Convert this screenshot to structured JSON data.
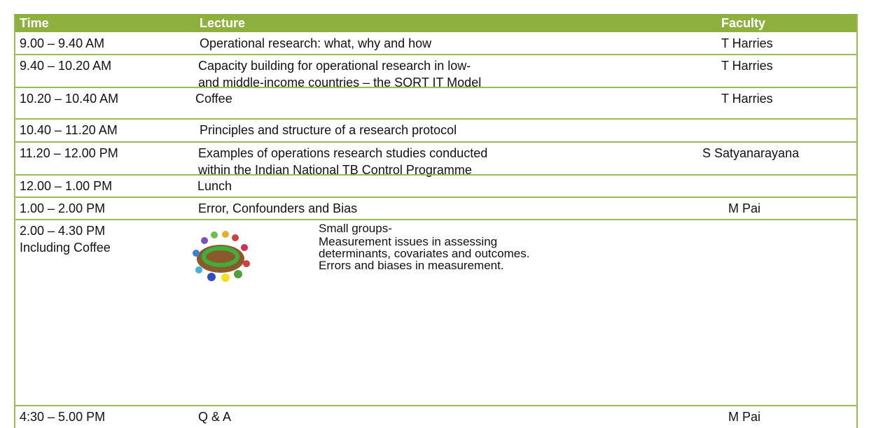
{
  "table": {
    "header": [
      "Time",
      "Lecture",
      "Faculty"
    ],
    "rows": [
      {
        "time": [
          "9.00 – 9.40 AM"
        ],
        "lecture": [
          "Operational research: what, why and how"
        ],
        "faculty": "T Harries"
      },
      {
        "time": [
          "9.40 – 10.20 AM"
        ],
        "lecture": [
          "Capacity building for operational research in low-",
          "and middle-income countries – the SORT IT Model"
        ],
        "faculty": "T Harries"
      },
      {
        "time": [
          "10.20 – 10.40 AM"
        ],
        "lecture": [
          "Coffee"
        ],
        "faculty": "T Harries"
      },
      {
        "time": [
          "10.40 – 11.20 AM"
        ],
        "lecture": [
          "Principles and structure of a research protocol"
        ]
      },
      {
        "time": [
          "11.20 – 12.00 PM"
        ],
        "lecture": [
          "Examples of operations research studies conducted",
          "within the Indian National TB Control Programme"
        ],
        "faculty": "S Satyanarayana"
      },
      {
        "time": [
          "12.00 – 1.00 PM"
        ],
        "lecture": [
          "Lunch"
        ]
      },
      {
        "time": [
          "1.00 – 2.00 PM"
        ],
        "lecture": [
          "Error, Confounders and Bias"
        ],
        "faculty": "M Pai"
      },
      {
        "time": [
          "2.00 – 4.30 PM",
          "Including Coffee"
        ],
        "lecture": [
          "Small groups-",
          "Measurement issues in assessing",
          "determinants, covariates and outcomes.",
          "Errors and biases in measurement."
        ]
      },
      {
        "time": [
          "4:30 – 5.00 PM"
        ],
        "lecture": [
          "Q & A"
        ],
        "faculty": "M Pai"
      }
    ]
  }
}
